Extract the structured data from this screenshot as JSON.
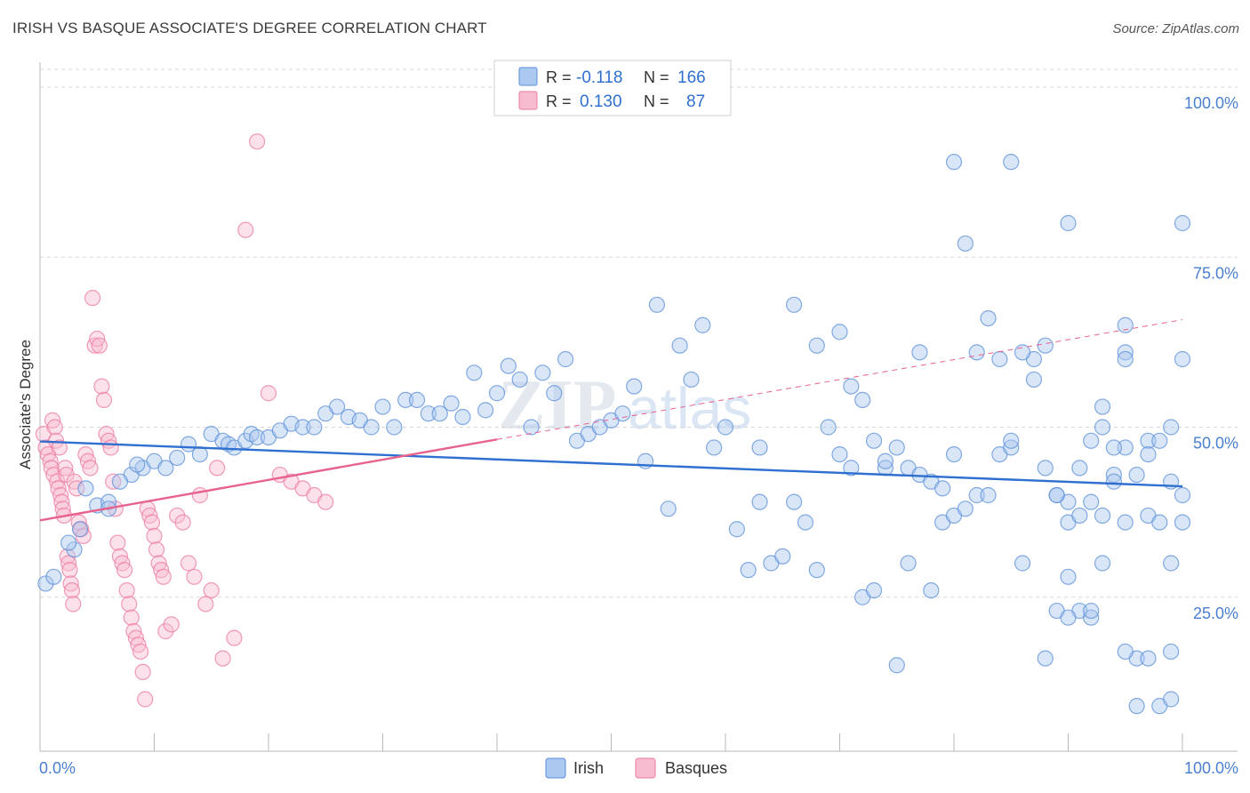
{
  "title": "IRISH VS BASQUE ASSOCIATE'S DEGREE CORRELATION CHART",
  "source": "Source: ZipAtlas.com",
  "watermark": {
    "zip": "ZIP",
    "atlas": "atlas"
  },
  "colors": {
    "irish": "#5b8fd8",
    "irish_fill": "#aac8f0",
    "irish_line": "#2e6fd0",
    "basques": "#ec7aa0",
    "basques_fill": "#f8bcd0",
    "basques_line": "#e8628e",
    "axis_text": "#4a7fcf",
    "grid": "#d7d7d7"
  },
  "legend_top": {
    "irish": {
      "r_label": "R =",
      "r_value": "-0.118",
      "n_label": "N =",
      "n_value": "166"
    },
    "basques": {
      "r_label": "R =",
      "r_value": "0.130",
      "n_label": "N =",
      "n_value": "87"
    }
  },
  "legend_bottom": {
    "irish": "Irish",
    "basques": "Basques"
  },
  "chart_data": {
    "type": "scatter",
    "title": "IRISH VS BASQUE ASSOCIATE'S DEGREE CORRELATION CHART",
    "xlabel": "",
    "ylabel": "Associate's Degree",
    "xlim": [
      0,
      100
    ],
    "ylim": [
      0,
      100
    ],
    "x_tick_labels": [
      "0.0%",
      "100.0%"
    ],
    "y_tick_labels": [
      "100.0%",
      "75.0%",
      "50.0%",
      "25.0%"
    ],
    "y_ticks": [
      100,
      75,
      50,
      25
    ],
    "grid": true,
    "legend_position": "top-center",
    "series": [
      {
        "name": "Irish",
        "r": -0.118,
        "n": 166,
        "trend": {
          "x": [
            0,
            100
          ],
          "y": [
            47.9,
            41.3
          ],
          "style": "solid"
        },
        "points": [
          [
            0.5,
            27
          ],
          [
            1.2,
            28
          ],
          [
            3,
            32
          ],
          [
            3.5,
            35
          ],
          [
            2.5,
            33
          ],
          [
            5,
            38.5
          ],
          [
            4,
            41
          ],
          [
            6,
            39
          ],
          [
            6,
            38
          ],
          [
            8,
            43
          ],
          [
            7,
            42
          ],
          [
            9,
            44
          ],
          [
            8.5,
            44.5
          ],
          [
            10,
            45
          ],
          [
            11,
            44
          ],
          [
            12,
            45.5
          ],
          [
            13,
            47.5
          ],
          [
            14,
            46
          ],
          [
            15,
            49
          ],
          [
            16,
            48
          ],
          [
            16.5,
            47.5
          ],
          [
            17,
            47
          ],
          [
            18,
            48
          ],
          [
            18.5,
            49
          ],
          [
            19,
            48.5
          ],
          [
            20,
            48.5
          ],
          [
            21,
            49.5
          ],
          [
            22,
            50.5
          ],
          [
            23,
            50
          ],
          [
            24,
            50
          ],
          [
            25,
            52
          ],
          [
            26,
            53
          ],
          [
            27,
            51.5
          ],
          [
            28,
            51
          ],
          [
            29,
            50
          ],
          [
            30,
            53
          ],
          [
            31,
            50
          ],
          [
            32,
            54
          ],
          [
            33,
            54
          ],
          [
            34,
            52
          ],
          [
            35,
            52
          ],
          [
            36,
            53.5
          ],
          [
            37,
            51.5
          ],
          [
            38,
            58
          ],
          [
            39,
            52.5
          ],
          [
            40,
            55
          ],
          [
            41,
            59
          ],
          [
            42,
            57
          ],
          [
            43,
            50
          ],
          [
            44,
            58
          ],
          [
            45,
            55
          ],
          [
            46,
            60
          ],
          [
            47,
            48
          ],
          [
            48,
            49
          ],
          [
            49,
            50
          ],
          [
            50,
            51
          ],
          [
            51,
            52
          ],
          [
            52,
            56
          ],
          [
            53,
            45
          ],
          [
            54,
            68
          ],
          [
            55,
            38
          ],
          [
            56,
            62
          ],
          [
            57,
            57
          ],
          [
            58,
            65
          ],
          [
            59,
            47
          ],
          [
            60,
            50
          ],
          [
            61,
            35
          ],
          [
            62,
            29
          ],
          [
            63,
            39
          ],
          [
            64,
            30
          ],
          [
            65,
            31
          ],
          [
            66,
            39
          ],
          [
            67,
            36
          ],
          [
            68,
            29
          ],
          [
            69,
            50
          ],
          [
            70,
            46
          ],
          [
            71,
            44
          ],
          [
            72,
            25
          ],
          [
            73,
            26
          ],
          [
            74,
            44
          ],
          [
            75,
            47
          ],
          [
            76,
            30
          ],
          [
            77,
            61
          ],
          [
            78,
            26
          ],
          [
            79,
            36
          ],
          [
            80,
            37
          ],
          [
            81,
            38
          ],
          [
            82,
            40
          ],
          [
            83,
            40
          ],
          [
            84,
            46
          ],
          [
            85,
            47
          ],
          [
            86,
            30
          ],
          [
            87,
            60
          ],
          [
            88,
            44
          ],
          [
            89,
            40
          ],
          [
            90,
            28
          ],
          [
            91,
            23
          ],
          [
            92,
            22
          ],
          [
            93,
            53
          ],
          [
            94,
            43
          ],
          [
            95,
            47
          ],
          [
            96,
            9
          ],
          [
            97,
            48
          ],
          [
            98,
            9
          ],
          [
            99,
            10
          ],
          [
            100,
            36
          ],
          [
            63,
            47
          ],
          [
            66,
            68
          ],
          [
            68,
            62
          ],
          [
            70,
            64
          ],
          [
            71,
            56
          ],
          [
            72,
            54
          ],
          [
            73,
            48
          ],
          [
            74,
            45
          ],
          [
            75,
            15
          ],
          [
            76,
            44
          ],
          [
            77,
            43
          ],
          [
            78,
            42
          ],
          [
            79,
            41
          ],
          [
            80,
            46
          ],
          [
            81,
            77
          ],
          [
            82,
            61
          ],
          [
            83,
            66
          ],
          [
            84,
            60
          ],
          [
            85,
            48
          ],
          [
            86,
            61
          ],
          [
            87,
            57
          ],
          [
            88,
            62
          ],
          [
            89,
            23
          ],
          [
            90,
            39
          ],
          [
            91,
            44
          ],
          [
            92,
            48
          ],
          [
            93,
            50
          ],
          [
            94,
            47
          ],
          [
            95,
            36
          ],
          [
            96,
            16
          ],
          [
            97,
            37
          ],
          [
            98,
            36
          ],
          [
            99,
            42
          ],
          [
            80,
            89
          ],
          [
            85,
            89
          ],
          [
            90,
            80
          ],
          [
            95,
            65
          ],
          [
            100,
            60
          ],
          [
            93,
            30
          ],
          [
            95,
            17
          ],
          [
            97,
            16
          ],
          [
            99,
            17
          ],
          [
            88,
            16
          ],
          [
            89,
            40
          ],
          [
            90,
            36
          ],
          [
            91,
            37
          ],
          [
            92,
            39
          ],
          [
            93,
            37
          ],
          [
            94,
            42
          ],
          [
            95,
            61
          ],
          [
            96,
            43
          ],
          [
            97,
            46
          ],
          [
            98,
            48
          ],
          [
            99,
            50
          ],
          [
            100,
            40
          ],
          [
            100,
            80
          ],
          [
            99,
            30
          ],
          [
            95,
            60
          ],
          [
            92,
            23
          ],
          [
            90,
            22
          ]
        ]
      },
      {
        "name": "Basques",
        "r": 0.13,
        "n": 87,
        "trend": {
          "x": [
            0,
            40
          ],
          "y": [
            36.3,
            48.2
          ],
          "style": "solid",
          "extended": {
            "x": [
              40,
              100
            ],
            "y": [
              48.2,
              65.8
            ],
            "style": "dashed"
          }
        },
        "points": [
          [
            0.3,
            49
          ],
          [
            0.5,
            47
          ],
          [
            0.7,
            46
          ],
          [
            0.9,
            45
          ],
          [
            1,
            44
          ],
          [
            1.1,
            51
          ],
          [
            1.2,
            43
          ],
          [
            1.3,
            50
          ],
          [
            1.4,
            48
          ],
          [
            1.5,
            42
          ],
          [
            1.6,
            41
          ],
          [
            1.7,
            47
          ],
          [
            1.8,
            40
          ],
          [
            1.9,
            39
          ],
          [
            2,
            38
          ],
          [
            2.1,
            37
          ],
          [
            2.2,
            44
          ],
          [
            2.3,
            43
          ],
          [
            2.4,
            31
          ],
          [
            2.5,
            30
          ],
          [
            2.6,
            29
          ],
          [
            2.7,
            27
          ],
          [
            2.8,
            26
          ],
          [
            2.9,
            24
          ],
          [
            3,
            42
          ],
          [
            3.2,
            41
          ],
          [
            3.4,
            36
          ],
          [
            3.6,
            35
          ],
          [
            3.8,
            34
          ],
          [
            4,
            46
          ],
          [
            4.2,
            45
          ],
          [
            4.4,
            44
          ],
          [
            4.6,
            69
          ],
          [
            4.8,
            62
          ],
          [
            5,
            63
          ],
          [
            5.2,
            62
          ],
          [
            5.4,
            56
          ],
          [
            5.6,
            54
          ],
          [
            5.8,
            49
          ],
          [
            6,
            48
          ],
          [
            6.2,
            47
          ],
          [
            6.4,
            42
          ],
          [
            6.6,
            38
          ],
          [
            6.8,
            33
          ],
          [
            7,
            31
          ],
          [
            7.2,
            30
          ],
          [
            7.4,
            29
          ],
          [
            7.6,
            26
          ],
          [
            7.8,
            24
          ],
          [
            8,
            22
          ],
          [
            8.2,
            20
          ],
          [
            8.4,
            19
          ],
          [
            8.6,
            18
          ],
          [
            8.8,
            17
          ],
          [
            9,
            14
          ],
          [
            9.2,
            10
          ],
          [
            9.4,
            38
          ],
          [
            9.6,
            37
          ],
          [
            9.8,
            36
          ],
          [
            10,
            34
          ],
          [
            10.2,
            32
          ],
          [
            10.4,
            30
          ],
          [
            10.6,
            29
          ],
          [
            10.8,
            28
          ],
          [
            11,
            20
          ],
          [
            11.5,
            21
          ],
          [
            12,
            37
          ],
          [
            12.5,
            36
          ],
          [
            13,
            30
          ],
          [
            13.5,
            28
          ],
          [
            14,
            40
          ],
          [
            14.5,
            24
          ],
          [
            15,
            26
          ],
          [
            15.5,
            44
          ],
          [
            16,
            16
          ],
          [
            17,
            19
          ],
          [
            18,
            79
          ],
          [
            19,
            92
          ],
          [
            20,
            55
          ],
          [
            21,
            43
          ],
          [
            22,
            42
          ],
          [
            23,
            41
          ],
          [
            24,
            40
          ],
          [
            25,
            39
          ]
        ]
      }
    ]
  }
}
